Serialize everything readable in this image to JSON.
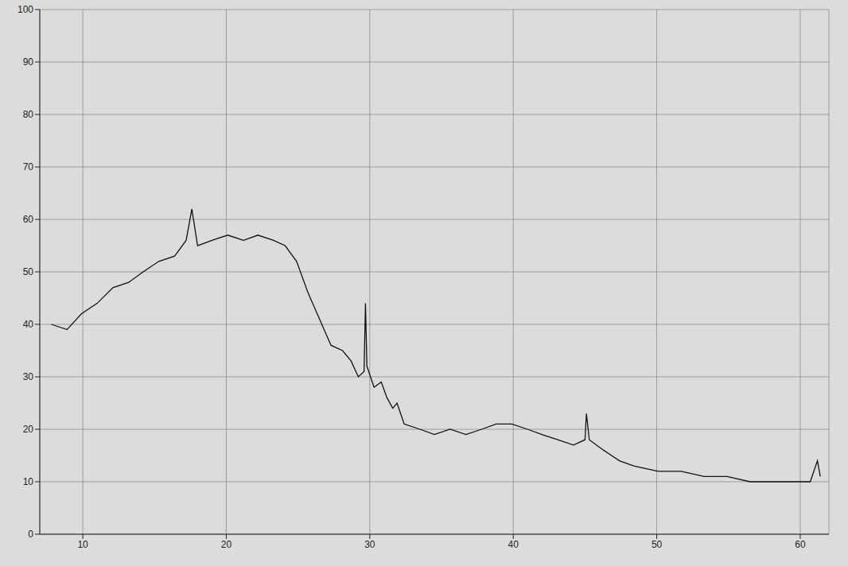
{
  "chart_data": {
    "type": "line",
    "x": [
      7.8,
      8.9,
      9.9,
      11.0,
      12.1,
      13.2,
      14.2,
      15.3,
      16.4,
      17.2,
      17.6,
      18.0,
      19.0,
      20.1,
      21.2,
      22.2,
      23.3,
      24.1,
      24.9,
      25.7,
      26.5,
      27.3,
      28.1,
      28.7,
      29.2,
      29.6,
      29.7,
      29.8,
      30.3,
      30.8,
      31.2,
      31.6,
      31.9,
      32.4,
      33.5,
      34.5,
      35.6,
      36.7,
      37.8,
      38.8,
      39.9,
      41.0,
      42.0,
      43.1,
      44.2,
      45.0,
      45.1,
      45.3,
      46.3,
      47.4,
      48.4,
      50.1,
      51.7,
      53.3,
      54.9,
      56.5,
      58.1,
      59.7,
      60.7,
      61.2,
      61.4
    ],
    "values": [
      40,
      39,
      42,
      44,
      47,
      48,
      50,
      52,
      53,
      56,
      62,
      55,
      56,
      57,
      56,
      57,
      56,
      55,
      52,
      46,
      41,
      36,
      35,
      33,
      30,
      31,
      44,
      32,
      28,
      29,
      26,
      24,
      25,
      21,
      20,
      19,
      20,
      19,
      20,
      21,
      21,
      20,
      19,
      18,
      17,
      18,
      23,
      18,
      16,
      14,
      13,
      12,
      12,
      11,
      11,
      10,
      10,
      10,
      10,
      14,
      11
    ],
    "color": "#111111",
    "xlim": [
      7,
      62
    ],
    "xticks": [
      10,
      20,
      30,
      40,
      50,
      60
    ],
    "ylim": [
      0,
      100
    ],
    "yticks": [
      0,
      10,
      20,
      30,
      40,
      50,
      60,
      70,
      80,
      90,
      100
    ],
    "grid": true
  }
}
